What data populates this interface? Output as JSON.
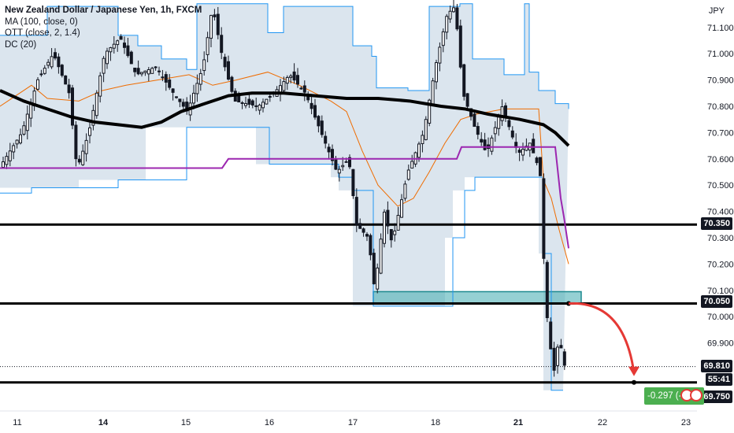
{
  "legend": {
    "title": "New Zealand Dollar / Japanese Yen, 1h, FXCM",
    "indicators": [
      "MA (100, close, 0)",
      "OTT (close, 2, 1.4)",
      "DC (20)"
    ]
  },
  "currency": "JPY",
  "colors": {
    "candle": "#131722",
    "ma": "#000000",
    "ott": "#9c27b0",
    "ott_support": "#ef6c00",
    "dc_band": "#2196f3",
    "dc_fill": "#cfdce8",
    "zone_fill": "#4fb1b5",
    "arrow": "#e53935",
    "position": "#4caf50"
  },
  "price_labels": {
    "level_70350": "70.350",
    "level_70050": "70.050",
    "level_69810": "69.810",
    "countdown": "55:41",
    "level_69750": "69.750"
  },
  "position_box": {
    "text": "-0.297 (-0.42"
  },
  "chart_data": {
    "type": "candlestick",
    "symbol": "NZDJPY",
    "timeframe": "1h",
    "y_ticks": [
      "71.100",
      "71.000",
      "70.900",
      "70.800",
      "70.700",
      "70.600",
      "70.500",
      "70.400",
      "70.300",
      "70.200",
      "70.100",
      "70.000",
      "69.900"
    ],
    "x_ticks": [
      "11",
      "14",
      "15",
      "16",
      "17",
      "18",
      "21",
      "22",
      "23"
    ],
    "ylim": [
      69.68,
      71.18
    ],
    "horizontal_levels": [
      70.35,
      70.05,
      69.75
    ],
    "current_price": 69.81,
    "demand_zone": {
      "low": 70.05,
      "high": 70.095
    },
    "ma_points": [
      {
        "x": "11",
        "y": 70.85
      },
      {
        "x": "14",
        "y": 70.73
      },
      {
        "x": "15",
        "y": 70.78
      },
      {
        "x": "16",
        "y": 70.84
      },
      {
        "x": "17",
        "y": 70.83
      },
      {
        "x": "18",
        "y": 70.8
      },
      {
        "x": "21",
        "y": 70.72
      }
    ],
    "ott_points": [
      {
        "x": "11",
        "y": 70.565
      },
      {
        "x": "15",
        "y": 70.565
      },
      {
        "x": "16",
        "y": 70.6
      },
      {
        "x": "18",
        "y": 70.6
      },
      {
        "x": "21",
        "y": 70.645
      },
      {
        "x": "21.4",
        "y": 70.26
      }
    ],
    "forecast_arrow": {
      "from": 70.05,
      "to": 69.75
    }
  }
}
